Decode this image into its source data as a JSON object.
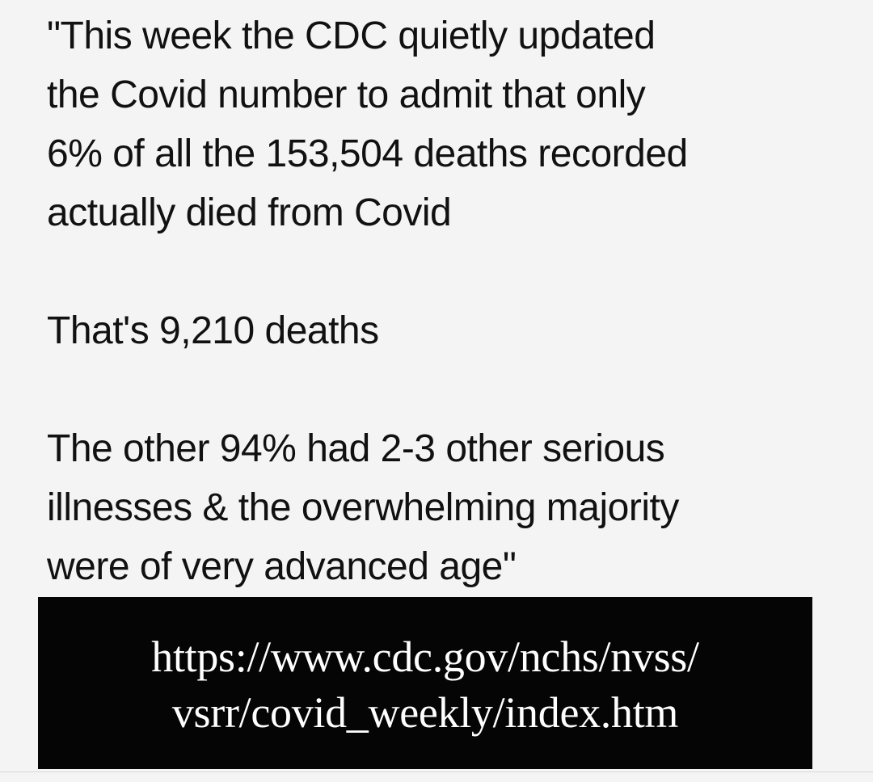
{
  "post": {
    "paragraph_1": "\"This week the CDC quietly updated\nthe Covid number to admit that only\n6% of all the 153,504 deaths recorded\nactually died from Covid",
    "paragraph_2": "That's 9,210 deaths",
    "paragraph_3": "The other 94% had 2-3 other serious\nillnesses & the overwhelming majority\nwere of very advanced age\"",
    "link_text": "https://www.cdc.gov/nchs/nvss/\nvsrr/covid_weekly/index.htm"
  },
  "colors": {
    "background": "#f4f4f4",
    "text": "#111111",
    "link_box_background": "#050505",
    "link_box_text": "#ffffff"
  }
}
